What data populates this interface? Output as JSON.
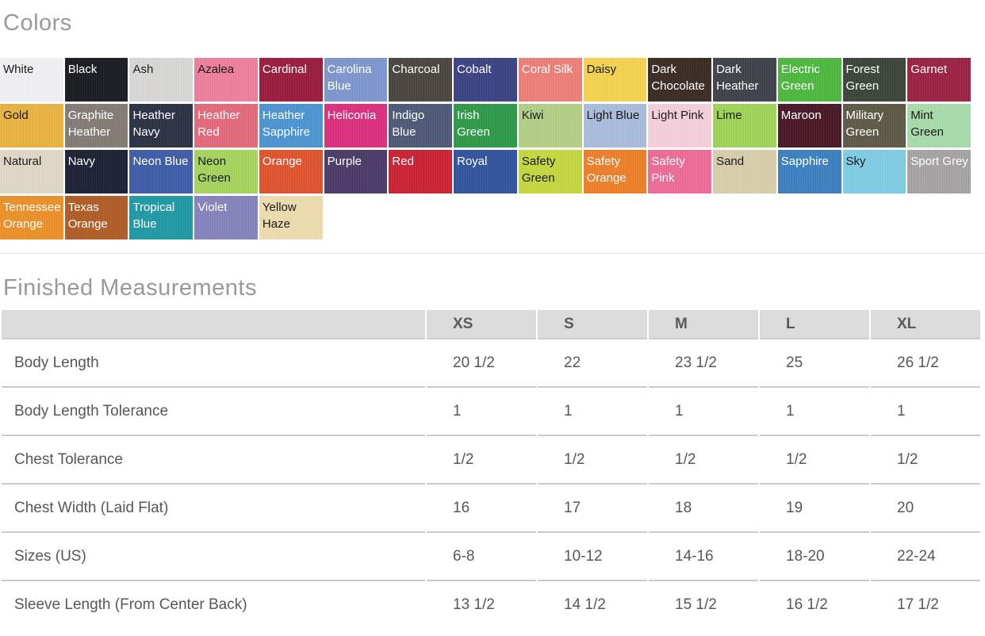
{
  "colors": {
    "title": "Colors",
    "swatches": [
      {
        "name": "White",
        "bg": "#f1f1f3",
        "fg": "#1b1b1b"
      },
      {
        "name": "Black",
        "bg": "#191b20",
        "fg": "#ffffff"
      },
      {
        "name": "Ash",
        "bg": "#d9d8d6",
        "fg": "#1b1b1b"
      },
      {
        "name": "Azalea",
        "bg": "#ee7f9e",
        "fg": "#1b1b1b"
      },
      {
        "name": "Cardinal",
        "bg": "#9a1b3e",
        "fg": "#ffffff"
      },
      {
        "name": "Carolina Blue",
        "bg": "#7e97d0",
        "fg": "#ffffff"
      },
      {
        "name": "Charcoal",
        "bg": "#49443e",
        "fg": "#ffffff"
      },
      {
        "name": "Cobalt",
        "bg": "#3b4283",
        "fg": "#ffffff"
      },
      {
        "name": "Coral Silk",
        "bg": "#ee7f78",
        "fg": "#ffffff"
      },
      {
        "name": "Daisy",
        "bg": "#f6d350",
        "fg": "#1b1b1b"
      },
      {
        "name": "Dark Chocolate",
        "bg": "#3a2b24",
        "fg": "#ffffff"
      },
      {
        "name": "Dark Heather",
        "bg": "#3f4149",
        "fg": "#ffffff"
      },
      {
        "name": "Electric Green",
        "bg": "#4cb93d",
        "fg": "#ffffff"
      },
      {
        "name": "Forest Green",
        "bg": "#3c4439",
        "fg": "#ffffff"
      },
      {
        "name": "Garnet",
        "bg": "#9b2144",
        "fg": "#ffffff"
      },
      {
        "name": "Gold",
        "bg": "#eab441",
        "fg": "#1b1b1b"
      },
      {
        "name": "Graphite Heather",
        "bg": "#837b74",
        "fg": "#ffffff"
      },
      {
        "name": "Heather Navy",
        "bg": "#2b3143",
        "fg": "#ffffff"
      },
      {
        "name": "Heather Red",
        "bg": "#e4697a",
        "fg": "#ffffff"
      },
      {
        "name": "Heather Sapphire",
        "bg": "#4b95d4",
        "fg": "#ffffff"
      },
      {
        "name": "Heliconia",
        "bg": "#dc2e80",
        "fg": "#ffffff"
      },
      {
        "name": "Indigo Blue",
        "bg": "#4d5977",
        "fg": "#ffffff"
      },
      {
        "name": "Irish Green",
        "bg": "#2e9a49",
        "fg": "#ffffff"
      },
      {
        "name": "Kiwi",
        "bg": "#b4cf86",
        "fg": "#1b1b1b"
      },
      {
        "name": "Light Blue",
        "bg": "#a9bddd",
        "fg": "#1b1b1b"
      },
      {
        "name": "Light Pink",
        "bg": "#f6cfdd",
        "fg": "#1b1b1b"
      },
      {
        "name": "Lime",
        "bg": "#9fd457",
        "fg": "#1b1b1b"
      },
      {
        "name": "Maroon",
        "bg": "#491726",
        "fg": "#ffffff"
      },
      {
        "name": "Military Green",
        "bg": "#5c5a45",
        "fg": "#ffffff"
      },
      {
        "name": "Mint Green",
        "bg": "#a9dcab",
        "fg": "#1b1b1b"
      },
      {
        "name": "Natural",
        "bg": "#e0d9c6",
        "fg": "#1b1b1b"
      },
      {
        "name": "Navy",
        "bg": "#1c2033",
        "fg": "#ffffff"
      },
      {
        "name": "Neon Blue",
        "bg": "#3e5ca9",
        "fg": "#ffffff"
      },
      {
        "name": "Neon Green",
        "bg": "#a6d55d",
        "fg": "#1b1b1b"
      },
      {
        "name": "Orange",
        "bg": "#e0532e",
        "fg": "#ffffff"
      },
      {
        "name": "Purple",
        "bg": "#4a3b68",
        "fg": "#ffffff"
      },
      {
        "name": "Red",
        "bg": "#cb2135",
        "fg": "#ffffff"
      },
      {
        "name": "Royal",
        "bg": "#32549e",
        "fg": "#ffffff"
      },
      {
        "name": "Safety Green",
        "bg": "#c5d83d",
        "fg": "#1b1b1b"
      },
      {
        "name": "Safety Orange",
        "bg": "#ee7f28",
        "fg": "#ffffff"
      },
      {
        "name": "Safety Pink",
        "bg": "#ee6c98",
        "fg": "#ffffff"
      },
      {
        "name": "Sand",
        "bg": "#d8cfad",
        "fg": "#1b1b1b"
      },
      {
        "name": "Sapphire",
        "bg": "#3d80c1",
        "fg": "#ffffff"
      },
      {
        "name": "Sky",
        "bg": "#7fcde7",
        "fg": "#1b1b1b"
      },
      {
        "name": "Sport Grey",
        "bg": "#a5a3a4",
        "fg": "#ffffff"
      },
      {
        "name": "Tennessee Orange",
        "bg": "#ec9128",
        "fg": "#ffffff"
      },
      {
        "name": "Texas Orange",
        "bg": "#b25d26",
        "fg": "#ffffff"
      },
      {
        "name": "Tropical Blue",
        "bg": "#1f9aa5",
        "fg": "#ffffff"
      },
      {
        "name": "Violet",
        "bg": "#8583bd",
        "fg": "#ffffff"
      },
      {
        "name": "Yellow Haze",
        "bg": "#eeddae",
        "fg": "#1b1b1b"
      }
    ]
  },
  "measurements": {
    "title": "Finished Measurements",
    "columns": [
      "XS",
      "S",
      "M",
      "L",
      "XL"
    ],
    "rows": [
      {
        "label": "Body Length",
        "values": [
          "20 1/2",
          "22",
          "23 1/2",
          "25",
          "26 1/2"
        ]
      },
      {
        "label": "Body Length Tolerance",
        "values": [
          "1",
          "1",
          "1",
          "1",
          "1"
        ]
      },
      {
        "label": "Chest Tolerance",
        "values": [
          "1/2",
          "1/2",
          "1/2",
          "1/2",
          "1/2"
        ]
      },
      {
        "label": "Chest Width (Laid Flat)",
        "values": [
          "16",
          "17",
          "18",
          "19",
          "20"
        ]
      },
      {
        "label": "Sizes (US)",
        "values": [
          "6-8",
          "10-12",
          "14-16",
          "18-20",
          "22-24"
        ]
      },
      {
        "label": "Sleeve Length (From Center Back)",
        "values": [
          "13 1/2",
          "14 1/2",
          "15 1/2",
          "16 1/2",
          "17 1/2"
        ]
      }
    ]
  }
}
